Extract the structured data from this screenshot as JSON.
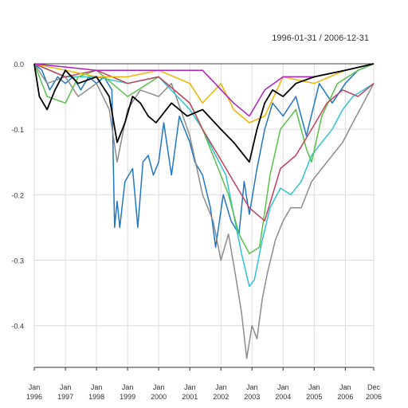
{
  "chart_data": {
    "type": "line",
    "subtitle": "1996-01-31 / 2006-12-31",
    "x_axis": {
      "start": "1996-01-31",
      "end": "2006-12-31",
      "tick_labels": [
        {
          "date": "1996-01-31",
          "line1": "Jan",
          "line2": "1996"
        },
        {
          "date": "1997-01-31",
          "line1": "Jan",
          "line2": "1997"
        },
        {
          "date": "1998-01-31",
          "line1": "Jan",
          "line2": "1998"
        },
        {
          "date": "1999-01-31",
          "line1": "Jan",
          "line2": "1999"
        },
        {
          "date": "2000-01-31",
          "line1": "Jan",
          "line2": "2000"
        },
        {
          "date": "2001-01-31",
          "line1": "Jan",
          "line2": "2001"
        },
        {
          "date": "2002-01-31",
          "line1": "Jan",
          "line2": "2002"
        },
        {
          "date": "2003-01-31",
          "line1": "Jan",
          "line2": "2003"
        },
        {
          "date": "2004-01-31",
          "line1": "Jan",
          "line2": "2004"
        },
        {
          "date": "2005-01-31",
          "line1": "Jan",
          "line2": "2005"
        },
        {
          "date": "2006-01-31",
          "line1": "Jan",
          "line2": "2006"
        },
        {
          "date": "2006-12-31",
          "line1": "Dec",
          "line2": "2006"
        }
      ]
    },
    "y_axis": {
      "min": -0.46,
      "max": 0.0,
      "ticks": [
        0.0,
        -0.1,
        -0.2,
        -0.3,
        -0.4
      ],
      "tick_labels": [
        "0.0",
        "-0.1",
        "-0.2",
        "-0.3",
        "-0.4"
      ]
    },
    "grid": true,
    "series": [
      {
        "color": "#1f77c4",
        "points": [
          [
            "1996-01-31",
            0.0
          ],
          [
            "1996-04-30",
            -0.01
          ],
          [
            "1996-07-31",
            -0.04
          ],
          [
            "1996-10-31",
            -0.02
          ],
          [
            "1997-01-31",
            -0.03
          ],
          [
            "1997-04-30",
            -0.02
          ],
          [
            "1997-07-31",
            -0.04
          ],
          [
            "1997-10-31",
            -0.02
          ],
          [
            "1998-01-31",
            -0.03
          ],
          [
            "1998-04-30",
            -0.02
          ],
          [
            "1998-07-31",
            -0.04
          ],
          [
            "1998-08-31",
            -0.25
          ],
          [
            "1998-09-30",
            -0.21
          ],
          [
            "1998-10-31",
            -0.25
          ],
          [
            "1998-12-31",
            -0.18
          ],
          [
            "1999-03-31",
            -0.16
          ],
          [
            "1999-05-31",
            -0.25
          ],
          [
            "1999-07-31",
            -0.15
          ],
          [
            "1999-09-30",
            -0.14
          ],
          [
            "1999-11-30",
            -0.17
          ],
          [
            "2000-01-31",
            -0.15
          ],
          [
            "2000-03-31",
            -0.09
          ],
          [
            "2000-06-30",
            -0.17
          ],
          [
            "2000-09-30",
            -0.08
          ],
          [
            "2001-01-31",
            -0.12
          ],
          [
            "2001-03-31",
            -0.15
          ],
          [
            "2001-06-30",
            -0.17
          ],
          [
            "2001-09-30",
            -0.22
          ],
          [
            "2001-11-30",
            -0.28
          ],
          [
            "2002-02-28",
            -0.2
          ],
          [
            "2002-05-31",
            -0.24
          ],
          [
            "2002-08-31",
            -0.26
          ],
          [
            "2002-10-31",
            -0.18
          ],
          [
            "2002-12-31",
            -0.23
          ],
          [
            "2003-03-31",
            -0.16
          ],
          [
            "2003-06-30",
            -0.1
          ],
          [
            "2003-09-30",
            -0.06
          ],
          [
            "2004-01-31",
            -0.08
          ],
          [
            "2004-06-30",
            -0.05
          ],
          [
            "2004-10-31",
            -0.11
          ],
          [
            "2005-03-31",
            -0.03
          ],
          [
            "2005-08-31",
            -0.06
          ],
          [
            "2006-01-31",
            -0.03
          ],
          [
            "2006-06-30",
            -0.01
          ],
          [
            "2006-12-31",
            0.0
          ]
        ]
      },
      {
        "color": "#8c8c8c",
        "points": [
          [
            "1996-01-31",
            0.0
          ],
          [
            "1996-06-30",
            -0.03
          ],
          [
            "1997-01-31",
            -0.02
          ],
          [
            "1997-06-30",
            -0.05
          ],
          [
            "1998-01-31",
            -0.03
          ],
          [
            "1998-06-30",
            -0.07
          ],
          [
            "1998-09-30",
            -0.15
          ],
          [
            "1999-01-31",
            -0.07
          ],
          [
            "1999-06-30",
            -0.04
          ],
          [
            "2000-01-31",
            -0.05
          ],
          [
            "2000-06-30",
            -0.03
          ],
          [
            "2001-01-31",
            -0.11
          ],
          [
            "2001-06-30",
            -0.2
          ],
          [
            "2001-10-31",
            -0.24
          ],
          [
            "2002-01-31",
            -0.3
          ],
          [
            "2002-04-30",
            -0.26
          ],
          [
            "2002-07-31",
            -0.33
          ],
          [
            "2002-09-30",
            -0.38
          ],
          [
            "2002-11-30",
            -0.45
          ],
          [
            "2003-01-31",
            -0.4
          ],
          [
            "2003-03-31",
            -0.42
          ],
          [
            "2003-05-31",
            -0.36
          ],
          [
            "2003-07-31",
            -0.32
          ],
          [
            "2003-10-31",
            -0.27
          ],
          [
            "2004-01-31",
            -0.24
          ],
          [
            "2004-04-30",
            -0.22
          ],
          [
            "2004-08-31",
            -0.22
          ],
          [
            "2004-12-31",
            -0.18
          ],
          [
            "2005-04-30",
            -0.16
          ],
          [
            "2005-08-31",
            -0.14
          ],
          [
            "2005-12-31",
            -0.12
          ],
          [
            "2006-04-30",
            -0.09
          ],
          [
            "2006-08-31",
            -0.06
          ],
          [
            "2006-12-31",
            -0.03
          ]
        ]
      },
      {
        "color": "#2ec4d6",
        "points": [
          [
            "1996-01-31",
            0.0
          ],
          [
            "1997-01-31",
            -0.02
          ],
          [
            "1998-01-31",
            -0.02
          ],
          [
            "1999-01-31",
            -0.03
          ],
          [
            "2000-01-31",
            -0.02
          ],
          [
            "2001-01-31",
            -0.07
          ],
          [
            "2001-06-30",
            -0.1
          ],
          [
            "2001-11-30",
            -0.14
          ],
          [
            "2002-03-31",
            -0.17
          ],
          [
            "2002-06-30",
            -0.23
          ],
          [
            "2002-09-30",
            -0.29
          ],
          [
            "2002-12-31",
            -0.34
          ],
          [
            "2003-02-28",
            -0.33
          ],
          [
            "2003-05-31",
            -0.27
          ],
          [
            "2003-08-31",
            -0.22
          ],
          [
            "2003-12-31",
            -0.19
          ],
          [
            "2004-04-30",
            -0.2
          ],
          [
            "2004-08-31",
            -0.18
          ],
          [
            "2004-12-31",
            -0.14
          ],
          [
            "2005-04-30",
            -0.12
          ],
          [
            "2005-08-31",
            -0.1
          ],
          [
            "2005-12-31",
            -0.07
          ],
          [
            "2006-04-30",
            -0.05
          ],
          [
            "2006-08-31",
            -0.04
          ],
          [
            "2006-12-31",
            -0.03
          ]
        ]
      },
      {
        "color": "#59c04a",
        "points": [
          [
            "1996-01-31",
            0.0
          ],
          [
            "1996-06-30",
            -0.05
          ],
          [
            "1997-01-31",
            -0.06
          ],
          [
            "1997-06-30",
            -0.02
          ],
          [
            "1998-01-31",
            -0.01
          ],
          [
            "1999-01-31",
            -0.05
          ],
          [
            "2000-01-31",
            -0.02
          ],
          [
            "2001-01-31",
            -0.06
          ],
          [
            "2001-06-30",
            -0.1
          ],
          [
            "2001-12-31",
            -0.16
          ],
          [
            "2002-04-30",
            -0.2
          ],
          [
            "2002-08-31",
            -0.26
          ],
          [
            "2002-12-31",
            -0.29
          ],
          [
            "2003-04-30",
            -0.28
          ],
          [
            "2003-08-31",
            -0.17
          ],
          [
            "2003-12-31",
            -0.1
          ],
          [
            "2004-06-30",
            -0.07
          ],
          [
            "2004-10-31",
            -0.13
          ],
          [
            "2004-12-31",
            -0.15
          ],
          [
            "2005-04-30",
            -0.08
          ],
          [
            "2005-10-31",
            -0.03
          ],
          [
            "2006-06-30",
            -0.01
          ],
          [
            "2006-12-31",
            0.0
          ]
        ]
      },
      {
        "color": "#c2405a",
        "points": [
          [
            "1996-01-31",
            0.0
          ],
          [
            "1997-01-31",
            -0.02
          ],
          [
            "1998-01-31",
            -0.01
          ],
          [
            "1999-01-31",
            -0.03
          ],
          [
            "2000-01-31",
            -0.02
          ],
          [
            "2001-01-31",
            -0.06
          ],
          [
            "2001-06-30",
            -0.1
          ],
          [
            "2001-12-31",
            -0.14
          ],
          [
            "2002-06-30",
            -0.18
          ],
          [
            "2002-12-31",
            -0.22
          ],
          [
            "2003-06-30",
            -0.24
          ],
          [
            "2003-12-31",
            -0.16
          ],
          [
            "2004-06-30",
            -0.14
          ],
          [
            "2004-12-31",
            -0.1
          ],
          [
            "2005-06-30",
            -0.06
          ],
          [
            "2005-12-31",
            -0.04
          ],
          [
            "2006-06-30",
            -0.05
          ],
          [
            "2006-12-31",
            -0.03
          ]
        ]
      },
      {
        "color": "#f0b400",
        "points": [
          [
            "1996-01-31",
            0.0
          ],
          [
            "1997-01-31",
            -0.01
          ],
          [
            "1998-01-31",
            -0.02
          ],
          [
            "1999-01-31",
            -0.02
          ],
          [
            "2000-01-31",
            -0.01
          ],
          [
            "2001-01-31",
            -0.03
          ],
          [
            "2001-06-30",
            -0.06
          ],
          [
            "2002-01-31",
            -0.03
          ],
          [
            "2002-06-30",
            -0.07
          ],
          [
            "2002-12-31",
            -0.09
          ],
          [
            "2003-06-30",
            -0.08
          ],
          [
            "2004-01-31",
            -0.02
          ],
          [
            "2005-01-31",
            -0.03
          ],
          [
            "2006-01-31",
            -0.01
          ],
          [
            "2006-12-31",
            0.0
          ]
        ]
      },
      {
        "color": "#b01fbf",
        "points": [
          [
            "1996-01-31",
            0.0
          ],
          [
            "1998-01-31",
            -0.01
          ],
          [
            "2000-01-31",
            -0.01
          ],
          [
            "2001-06-30",
            -0.01
          ],
          [
            "2002-06-30",
            -0.06
          ],
          [
            "2002-12-31",
            -0.08
          ],
          [
            "2003-06-30",
            -0.04
          ],
          [
            "2004-01-31",
            -0.02
          ],
          [
            "2005-01-31",
            -0.02
          ],
          [
            "2006-01-31",
            -0.01
          ],
          [
            "2006-12-31",
            0.0
          ]
        ]
      },
      {
        "color": "#000000",
        "points": [
          [
            "1996-01-31",
            0.0
          ],
          [
            "1996-03-31",
            -0.05
          ],
          [
            "1996-06-30",
            -0.07
          ],
          [
            "1996-09-30",
            -0.04
          ],
          [
            "1997-01-31",
            -0.01
          ],
          [
            "1997-06-30",
            -0.03
          ],
          [
            "1998-01-31",
            -0.02
          ],
          [
            "1998-06-30",
            -0.05
          ],
          [
            "1998-09-30",
            -0.12
          ],
          [
            "1998-12-31",
            -0.09
          ],
          [
            "1999-03-31",
            -0.05
          ],
          [
            "1999-06-30",
            -0.06
          ],
          [
            "1999-09-30",
            -0.08
          ],
          [
            "1999-12-31",
            -0.09
          ],
          [
            "2000-06-30",
            -0.06
          ],
          [
            "2000-12-31",
            -0.08
          ],
          [
            "2001-06-30",
            -0.07
          ],
          [
            "2002-01-31",
            -0.1
          ],
          [
            "2002-06-30",
            -0.12
          ],
          [
            "2002-12-31",
            -0.15
          ],
          [
            "2003-03-31",
            -0.1
          ],
          [
            "2003-06-30",
            -0.06
          ],
          [
            "2003-09-30",
            -0.04
          ],
          [
            "2004-01-31",
            -0.05
          ],
          [
            "2004-06-30",
            -0.03
          ],
          [
            "2005-01-31",
            -0.02
          ],
          [
            "2006-01-31",
            -0.01
          ],
          [
            "2006-12-31",
            0.0
          ]
        ]
      }
    ]
  }
}
